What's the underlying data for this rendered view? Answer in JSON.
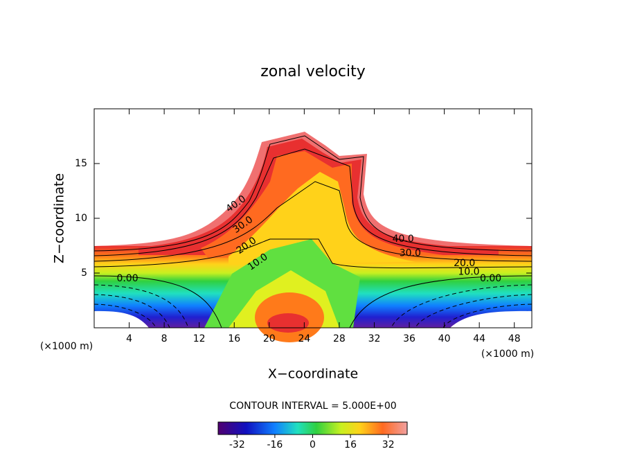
{
  "chart_data": {
    "type": "contour",
    "title": "zonal velocity",
    "xlabel": "X−coordinate",
    "ylabel": "Z−coordinate",
    "x_unit": "(×1000 m)",
    "xlim": [
      0,
      50
    ],
    "ylim": [
      0,
      20
    ],
    "xticks": [
      4,
      8,
      12,
      16,
      20,
      24,
      28,
      32,
      36,
      40,
      44,
      48
    ],
    "yticks": [
      5,
      10,
      15
    ],
    "contour_labels": [
      {
        "value": 40,
        "label": "40.0",
        "x": 16.2,
        "y": 11.3
      },
      {
        "value": 30,
        "label": "30.0",
        "x": 17.0,
        "y": 9.4
      },
      {
        "value": 20,
        "label": "20.0",
        "x": 17.4,
        "y": 7.5
      },
      {
        "value": 10,
        "label": "10.0",
        "x": 18.7,
        "y": 6.0
      },
      {
        "value": 0,
        "label": "0.00",
        "x": 3.8,
        "y": 4.5
      },
      {
        "value": 40,
        "label": "40.0",
        "x": 35.3,
        "y": 8.1
      },
      {
        "value": 30,
        "label": "30.0",
        "x": 36.1,
        "y": 6.8
      },
      {
        "value": 20,
        "label": "20.0",
        "x": 42.3,
        "y": 5.9
      },
      {
        "value": 10,
        "label": "10.0",
        "x": 42.8,
        "y": 5.1
      },
      {
        "value": 0,
        "label": "0.00",
        "x": 45.3,
        "y": 4.5
      }
    ],
    "contour_interval_text": "CONTOUR INTERVAL = 5.000E+00",
    "colorbar": {
      "lim": [
        -40,
        40
      ],
      "ticks": [
        -32,
        -16,
        0,
        16,
        32
      ]
    }
  }
}
